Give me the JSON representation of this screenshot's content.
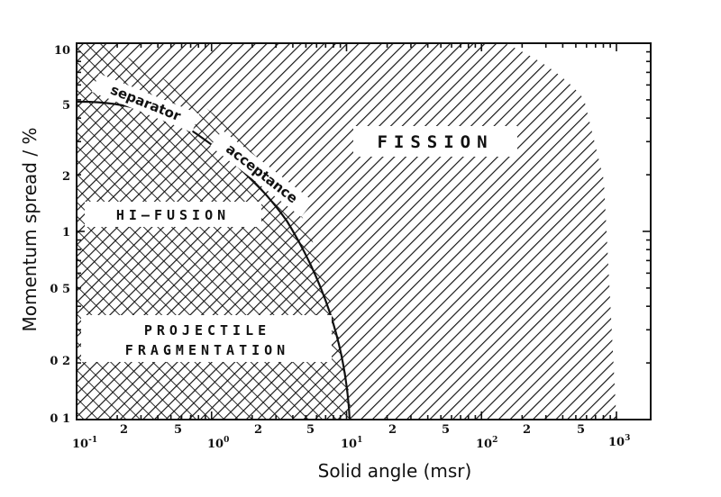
{
  "diagram": {
    "xlabel": "Solid angle (msr)",
    "ylabel": "Momentum spread / %",
    "x_major_ticks": [
      {
        "base": "10",
        "exp": "-1"
      },
      {
        "base": "10",
        "exp": "0"
      },
      {
        "base": "10",
        "exp": "1"
      },
      {
        "base": "10",
        "exp": "2"
      },
      {
        "base": "10",
        "exp": "3"
      }
    ],
    "x_minor_labels": [
      "2",
      "5",
      "2",
      "5",
      "2",
      "5",
      "2",
      "5"
    ],
    "y_tick_labels": [
      "10",
      "5",
      "2",
      "1",
      "0 5",
      "0 2",
      "0 1"
    ],
    "regions": {
      "fission": "FISSION",
      "hi_fusion": "HI–FUSION",
      "projectile_line1": "PROJECTILE",
      "projectile_line2": "FRAGMENTATION"
    },
    "curve_labels": {
      "word1": "separator",
      "word2": "acceptance"
    }
  }
}
